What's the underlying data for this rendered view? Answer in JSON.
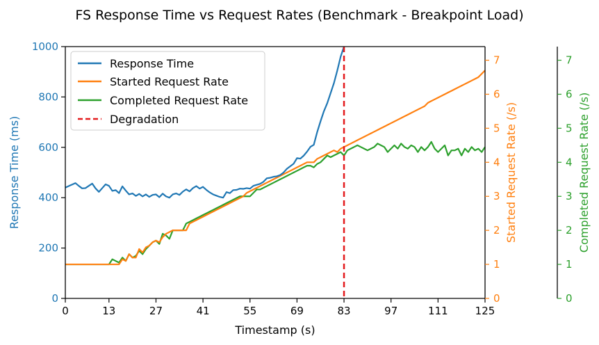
{
  "chart_data": {
    "type": "line",
    "title": "FS Response Time vs Request Rates (Benchmark - Breakpoint Load)",
    "xlabel": "Timestamp (s)",
    "ylabel_left": "Response Time (ms)",
    "ylabel_right1": "Started Request Rate (/s)",
    "ylabel_right2": "Completed Request Rate (/s)",
    "xlim": [
      0,
      125
    ],
    "ylim_left": [
      0,
      1000
    ],
    "ylim_right1": [
      0,
      7.4
    ],
    "ylim_right2": [
      0,
      7.4
    ],
    "xticks": [
      "0",
      "13",
      "27",
      "41",
      "55",
      "69",
      "83",
      "97",
      "111",
      "125"
    ],
    "yticks_left": [
      "0",
      "200",
      "400",
      "600",
      "800",
      "1000"
    ],
    "yticks_right1": [
      "0",
      "1",
      "2",
      "3",
      "4",
      "5",
      "6",
      "7"
    ],
    "yticks_right2": [
      "0",
      "1",
      "2",
      "3",
      "4",
      "5",
      "6",
      "7"
    ],
    "legend_position": "upper-left",
    "degradation_x": 83,
    "series": [
      {
        "name": "Response Time",
        "axis": "left",
        "color": "#1f77b4",
        "x": [
          0,
          1,
          2,
          3,
          4,
          5,
          6,
          7,
          8,
          9,
          10,
          11,
          12,
          13,
          14,
          15,
          16,
          17,
          18,
          19,
          20,
          21,
          22,
          23,
          24,
          25,
          26,
          27,
          28,
          29,
          30,
          31,
          32,
          33,
          34,
          35,
          36,
          37,
          38,
          39,
          40,
          41,
          42,
          43,
          44,
          45,
          46,
          47,
          48,
          49,
          50,
          51,
          52,
          53,
          54,
          55,
          56,
          57,
          58,
          59,
          60,
          61,
          62,
          63,
          64,
          65,
          66,
          67,
          68,
          69,
          70,
          71,
          72,
          73,
          74,
          75,
          76,
          77,
          78,
          79,
          80,
          81,
          82,
          83
        ],
        "values": [
          440,
          446,
          452,
          458,
          447,
          437,
          438,
          447,
          456,
          437,
          423,
          438,
          453,
          447,
          427,
          430,
          418,
          445,
          428,
          413,
          417,
          407,
          415,
          405,
          413,
          403,
          411,
          413,
          402,
          416,
          405,
          400,
          413,
          417,
          411,
          424,
          433,
          425,
          438,
          446,
          436,
          443,
          431,
          421,
          413,
          408,
          403,
          400,
          422,
          418,
          430,
          431,
          436,
          435,
          438,
          436,
          447,
          451,
          455,
          463,
          477,
          479,
          483,
          485,
          490,
          500,
          515,
          525,
          535,
          557,
          555,
          567,
          583,
          602,
          610,
          660,
          703,
          743,
          775,
          815,
          855,
          905,
          960,
          1000
        ]
      },
      {
        "name": "Started Request Rate",
        "axis": "right1",
        "color": "#ff7f0e",
        "x": [
          0,
          1,
          2,
          3,
          4,
          5,
          6,
          7,
          8,
          9,
          10,
          11,
          12,
          13,
          14,
          15,
          16,
          17,
          18,
          19,
          20,
          21,
          22,
          23,
          24,
          25,
          26,
          27,
          28,
          29,
          30,
          31,
          32,
          33,
          34,
          35,
          36,
          37,
          38,
          39,
          40,
          41,
          42,
          43,
          44,
          45,
          46,
          47,
          48,
          49,
          50,
          51,
          52,
          53,
          54,
          55,
          56,
          57,
          58,
          59,
          60,
          61,
          62,
          63,
          64,
          65,
          66,
          67,
          68,
          69,
          70,
          71,
          72,
          73,
          74,
          75,
          76,
          77,
          78,
          79,
          80,
          81,
          82,
          83,
          84,
          85,
          86,
          87,
          88,
          89,
          90,
          91,
          92,
          93,
          94,
          95,
          96,
          97,
          98,
          99,
          100,
          101,
          102,
          103,
          104,
          105,
          106,
          107,
          108,
          109,
          110,
          111,
          112,
          113,
          114,
          115,
          116,
          117,
          118,
          119,
          120,
          121,
          122,
          123,
          124,
          125
        ],
        "values": [
          1,
          1,
          1,
          1,
          1,
          1,
          1,
          1,
          1,
          1,
          1,
          1,
          1,
          1,
          1,
          1,
          1,
          1.15,
          1.1,
          1.3,
          1.2,
          1.2,
          1.45,
          1.35,
          1.5,
          1.55,
          1.65,
          1.7,
          1.65,
          1.8,
          1.9,
          1.95,
          2,
          2,
          2,
          2,
          2,
          2.2,
          2.25,
          2.3,
          2.35,
          2.4,
          2.45,
          2.5,
          2.55,
          2.6,
          2.65,
          2.7,
          2.75,
          2.8,
          2.85,
          2.9,
          2.95,
          3,
          3.1,
          3.15,
          3.2,
          3.25,
          3.3,
          3.35,
          3.4,
          3.45,
          3.5,
          3.55,
          3.6,
          3.65,
          3.7,
          3.75,
          3.8,
          3.85,
          3.9,
          3.95,
          4,
          4,
          4,
          4.1,
          4.15,
          4.2,
          4.25,
          4.3,
          4.35,
          4.3,
          4.4,
          4.45,
          4.5,
          4.55,
          4.6,
          4.65,
          4.7,
          4.75,
          4.8,
          4.85,
          4.9,
          4.95,
          5,
          5.05,
          5.1,
          5.15,
          5.2,
          5.25,
          5.3,
          5.35,
          5.4,
          5.45,
          5.5,
          5.55,
          5.6,
          5.65,
          5.75,
          5.8,
          5.85,
          5.9,
          5.95,
          6,
          6.05,
          6.1,
          6.15,
          6.2,
          6.25,
          6.3,
          6.35,
          6.4,
          6.45,
          6.5,
          6.6,
          6.7
        ]
      },
      {
        "name": "Completed Request Rate",
        "axis": "right2",
        "color": "#2ca02c",
        "x": [
          0,
          1,
          2,
          3,
          4,
          5,
          6,
          7,
          8,
          9,
          10,
          11,
          12,
          13,
          14,
          15,
          16,
          17,
          18,
          19,
          20,
          21,
          22,
          23,
          24,
          25,
          26,
          27,
          28,
          29,
          30,
          31,
          32,
          33,
          34,
          35,
          36,
          37,
          38,
          39,
          40,
          41,
          42,
          43,
          44,
          45,
          46,
          47,
          48,
          49,
          50,
          51,
          52,
          53,
          54,
          55,
          56,
          57,
          58,
          59,
          60,
          61,
          62,
          63,
          64,
          65,
          66,
          67,
          68,
          69,
          70,
          71,
          72,
          73,
          74,
          75,
          76,
          77,
          78,
          79,
          80,
          81,
          82,
          83,
          84,
          85,
          86,
          87,
          88,
          89,
          90,
          91,
          92,
          93,
          94,
          95,
          96,
          97,
          98,
          99,
          100,
          101,
          102,
          103,
          104,
          105,
          106,
          107,
          108,
          109,
          110,
          111,
          112,
          113,
          114,
          115,
          116,
          117,
          118,
          119,
          120,
          121,
          122,
          123,
          124,
          125
        ],
        "values": [
          1,
          1,
          1,
          1,
          1,
          1,
          1,
          1,
          1,
          1,
          1,
          1,
          1,
          1,
          1.15,
          1.1,
          1.05,
          1.2,
          1.1,
          1.3,
          1.2,
          1.25,
          1.4,
          1.3,
          1.45,
          1.55,
          1.65,
          1.7,
          1.6,
          1.9,
          1.85,
          1.75,
          2,
          2,
          2,
          2,
          2.2,
          2.25,
          2.3,
          2.35,
          2.4,
          2.45,
          2.5,
          2.55,
          2.6,
          2.65,
          2.7,
          2.75,
          2.8,
          2.85,
          2.9,
          2.95,
          3,
          3,
          3,
          3,
          3.1,
          3.2,
          3.2,
          3.25,
          3.3,
          3.35,
          3.4,
          3.45,
          3.5,
          3.55,
          3.6,
          3.65,
          3.7,
          3.75,
          3.8,
          3.85,
          3.9,
          3.9,
          3.85,
          3.95,
          4,
          4.1,
          4.2,
          4.15,
          4.2,
          4.25,
          4.3,
          4.2,
          4.35,
          4.4,
          4.45,
          4.5,
          4.45,
          4.4,
          4.35,
          4.4,
          4.45,
          4.55,
          4.5,
          4.45,
          4.3,
          4.4,
          4.5,
          4.4,
          4.55,
          4.45,
          4.4,
          4.5,
          4.45,
          4.3,
          4.45,
          4.35,
          4.45,
          4.6,
          4.4,
          4.3,
          4.4,
          4.5,
          4.2,
          4.35,
          4.35,
          4.4,
          4.2,
          4.4,
          4.3,
          4.45,
          4.35,
          4.4,
          4.3,
          4.45
        ]
      }
    ],
    "degradation": {
      "name": "Degradation",
      "color": "#e31a1c"
    }
  },
  "colors": {
    "left_axis": "#1f77b4",
    "right1_axis": "#ff7f0e",
    "right2_axis": "#2ca02c",
    "frame": "#000000"
  }
}
